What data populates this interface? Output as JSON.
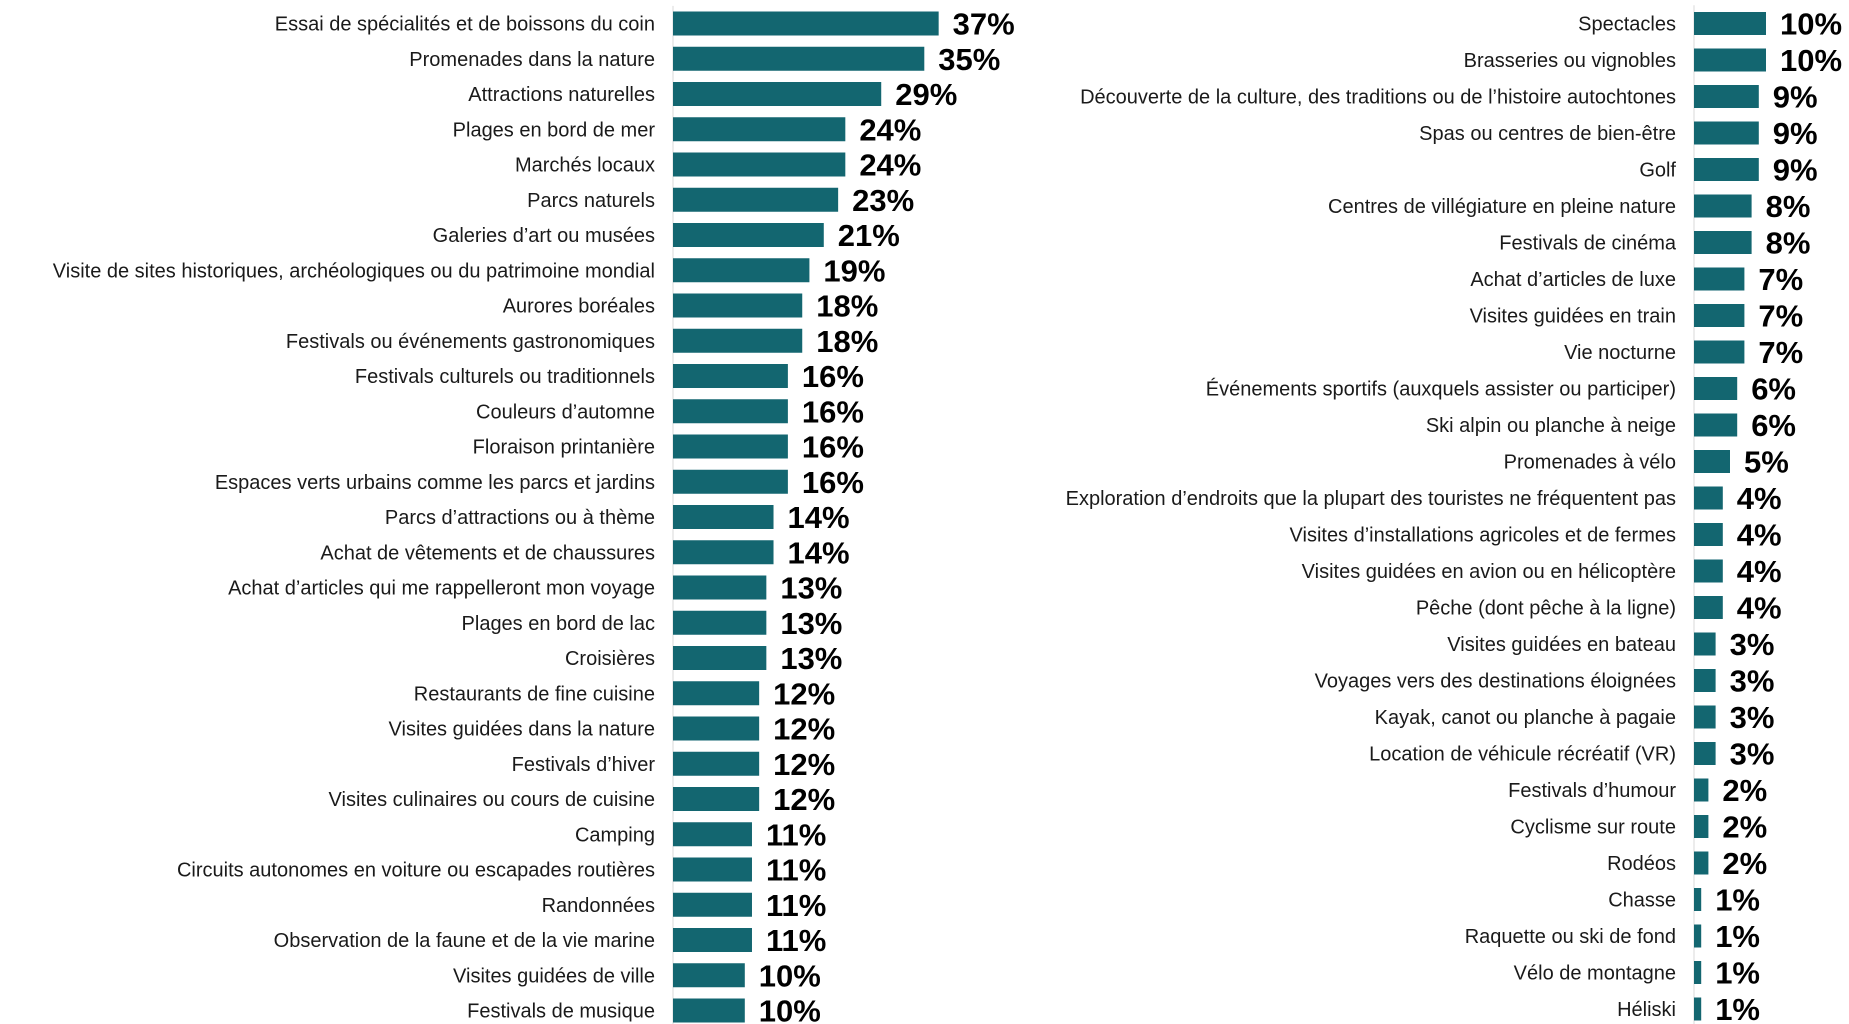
{
  "chart_data": [
    {
      "type": "bar",
      "orientation": "horizontal",
      "categories": [
        "Essai de spécialités et de boissons du coin",
        "Promenades dans la nature",
        "Attractions naturelles",
        "Plages en bord de mer",
        "Marchés locaux",
        "Parcs naturels",
        "Galeries d’art ou musées",
        "Visite de sites historiques, archéologiques ou du patrimoine mondial",
        "Aurores boréales",
        "Festivals ou événements gastronomiques",
        "Festivals culturels ou traditionnels",
        "Couleurs d’automne",
        "Floraison printanière",
        "Espaces verts urbains comme les parcs et jardins",
        "Parcs d’attractions ou à thème",
        "Achat de vêtements et de chaussures",
        "Achat d’articles qui me rappelleront mon voyage",
        "Plages en bord de lac",
        "Croisières",
        "Restaurants de fine cuisine",
        "Visites guidées dans la nature",
        "Festivals d’hiver",
        "Visites culinaires ou cours de cuisine",
        "Camping",
        "Circuits autonomes en voiture ou escapades routières",
        "Randonnées",
        "Observation de la faune et de la vie marine",
        "Visites guidées de ville",
        "Festivals de musique"
      ],
      "values": [
        37,
        35,
        29,
        24,
        24,
        23,
        21,
        19,
        18,
        18,
        16,
        16,
        16,
        16,
        14,
        14,
        13,
        13,
        13,
        12,
        12,
        12,
        12,
        11,
        11,
        11,
        11,
        10,
        10
      ],
      "labels": [
        "37%",
        "35%",
        "29%",
        "24%",
        "24%",
        "23%",
        "21%",
        "19%",
        "18%",
        "18%",
        "16%",
        "16%",
        "16%",
        "16%",
        "14%",
        "14%",
        "13%",
        "13%",
        "13%",
        "12%",
        "12%",
        "12%",
        "12%",
        "11%",
        "11%",
        "11%",
        "11%",
        "10%",
        "10%"
      ],
      "unit": "%",
      "grid": false,
      "xlim": [
        0,
        100
      ]
    },
    {
      "type": "bar",
      "orientation": "horizontal",
      "categories": [
        "Spectacles",
        "Brasseries ou vignobles",
        "Découverte de la culture, des traditions ou de l’histoire autochtones",
        "Spas ou centres de bien-être",
        "Golf",
        "Centres de villégiature en pleine nature",
        "Festivals de cinéma",
        "Achat d’articles de luxe",
        "Visites guidées en train",
        "Vie nocturne",
        "Événements sportifs (auxquels assister ou participer)",
        "Ski alpin ou planche à neige",
        "Promenades à vélo",
        "Exploration d’endroits que la plupart des touristes ne fréquentent pas",
        "Visites d’installations agricoles et de fermes",
        "Visites guidées en avion ou en hélicoptère",
        "Pêche (dont pêche à la ligne)",
        "Visites guidées en bateau",
        "Voyages vers des destinations éloignées",
        "Kayak, canot ou planche à pagaie",
        "Location de véhicule récréatif (VR)",
        "Festivals d’humour",
        "Cyclisme sur route",
        "Rodéos",
        "Chasse",
        "Raquette ou ski de fond",
        "Vélo de montagne",
        "Héliski"
      ],
      "values": [
        10,
        10,
        9,
        9,
        9,
        8,
        8,
        7,
        7,
        7,
        6,
        6,
        5,
        4,
        4,
        4,
        4,
        3,
        3,
        3,
        3,
        2,
        2,
        2,
        1,
        1,
        1,
        1
      ],
      "labels": [
        "10%",
        "10%",
        "9%",
        "9%",
        "9%",
        "8%",
        "8%",
        "7%",
        "7%",
        "7%",
        "6%",
        "6%",
        "5%",
        "4%",
        "4%",
        "4%",
        "4%",
        "3%",
        "3%",
        "3%",
        "3%",
        "2%",
        "2%",
        "2%",
        "1%",
        "1%",
        "1%",
        "1%"
      ],
      "unit": "%",
      "grid": false,
      "xlim": [
        0,
        100
      ]
    }
  ],
  "colors": {
    "bar": "#136670",
    "value_text": "#000000",
    "label_text": "#1a1a1a"
  }
}
